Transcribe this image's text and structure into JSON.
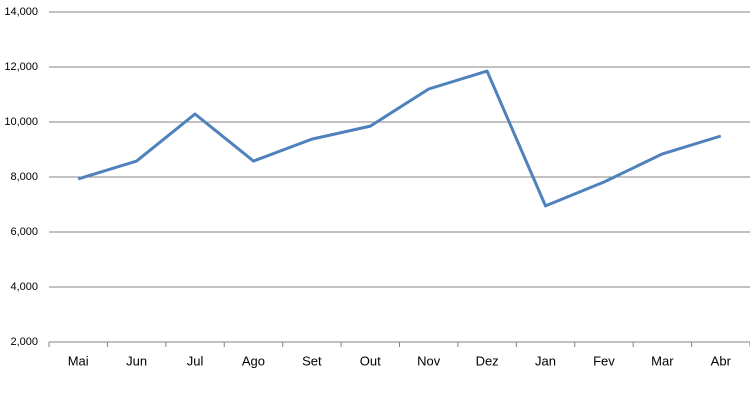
{
  "chart_data": {
    "type": "line",
    "categories": [
      "Mai",
      "Jun",
      "Jul",
      "Ago",
      "Set",
      "Out",
      "Nov",
      "Dez",
      "Jan",
      "Fev",
      "Mar",
      "Abr"
    ],
    "series": [
      {
        "color": "#4f81bd",
        "values": [
          7930,
          8580,
          10290,
          8580,
          9380,
          9850,
          11200,
          11850,
          6950,
          7820,
          8840,
          9490
        ]
      }
    ],
    "ylim": [
      2000,
      14000
    ],
    "yticks": [
      {
        "value": 2000,
        "label": "2,000"
      },
      {
        "value": 4000,
        "label": "4,000"
      },
      {
        "value": 6000,
        "label": "6,000"
      },
      {
        "value": 8000,
        "label": "8,000"
      },
      {
        "value": 10000,
        "label": "10,000"
      },
      {
        "value": 12000,
        "label": "12,000"
      },
      {
        "value": 14000,
        "label": "14,000"
      }
    ],
    "grid": true
  }
}
